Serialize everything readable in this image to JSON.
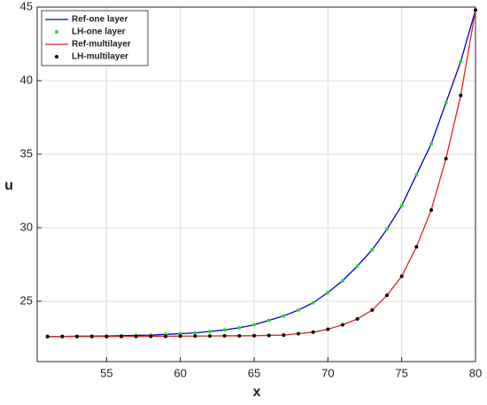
{
  "chart_data": {
    "type": "line",
    "x_label": "x",
    "y_label": "u",
    "x": [
      51,
      52,
      53,
      54,
      55,
      56,
      57,
      58,
      59,
      60,
      61,
      62,
      63,
      64,
      65,
      66,
      67,
      68,
      69,
      70,
      71,
      72,
      73,
      74,
      75,
      76,
      77,
      78,
      79,
      80
    ],
    "series": [
      {
        "name": "Ref-one layer",
        "color": "#0000cc",
        "mode": "line",
        "values": [
          22.6,
          22.61,
          22.62,
          22.63,
          22.64,
          22.66,
          22.68,
          22.7,
          22.75,
          22.8,
          22.85,
          22.95,
          23.05,
          23.2,
          23.4,
          23.7,
          24.0,
          24.4,
          24.9,
          25.6,
          26.4,
          27.4,
          28.5,
          29.9,
          31.5,
          33.6,
          35.7,
          38.5,
          41.3,
          44.8
        ]
      },
      {
        "name": "LH-one layer",
        "color": "#22dd22",
        "mode": "markers",
        "values": [
          22.6,
          22.61,
          22.62,
          22.63,
          22.64,
          22.66,
          22.68,
          22.7,
          22.75,
          22.8,
          22.85,
          22.95,
          23.05,
          23.2,
          23.4,
          23.7,
          24.0,
          24.4,
          24.9,
          25.6,
          26.4,
          27.4,
          28.5,
          29.9,
          31.5,
          33.6,
          35.7,
          38.5,
          41.3,
          44.8
        ]
      },
      {
        "name": "Ref-multilayer",
        "color": "#dd2222",
        "mode": "line",
        "values": [
          22.6,
          22.6,
          22.6,
          22.6,
          22.6,
          22.61,
          22.61,
          22.62,
          22.62,
          22.63,
          22.63,
          22.64,
          22.65,
          22.65,
          22.66,
          22.68,
          22.7,
          22.8,
          22.9,
          23.1,
          23.4,
          23.8,
          24.4,
          25.4,
          26.7,
          28.7,
          31.2,
          34.7,
          39.0,
          44.8
        ]
      },
      {
        "name": "LH-multilayer",
        "color": "#000000",
        "mode": "markers",
        "values": [
          22.6,
          22.6,
          22.6,
          22.6,
          22.6,
          22.61,
          22.61,
          22.62,
          22.62,
          22.63,
          22.63,
          22.64,
          22.65,
          22.65,
          22.66,
          22.68,
          22.7,
          22.8,
          22.9,
          23.1,
          23.4,
          23.8,
          24.4,
          25.4,
          26.7,
          28.7,
          31.2,
          34.7,
          39.0,
          44.8
        ]
      }
    ],
    "xlim": [
      50.3,
      80
    ],
    "xticks": [
      55,
      60,
      65,
      70,
      75,
      80
    ],
    "ylim": [
      20.9,
      45
    ],
    "yticks": [
      25,
      30,
      35,
      40,
      45
    ],
    "grid": true,
    "legend_position": "top-left"
  }
}
